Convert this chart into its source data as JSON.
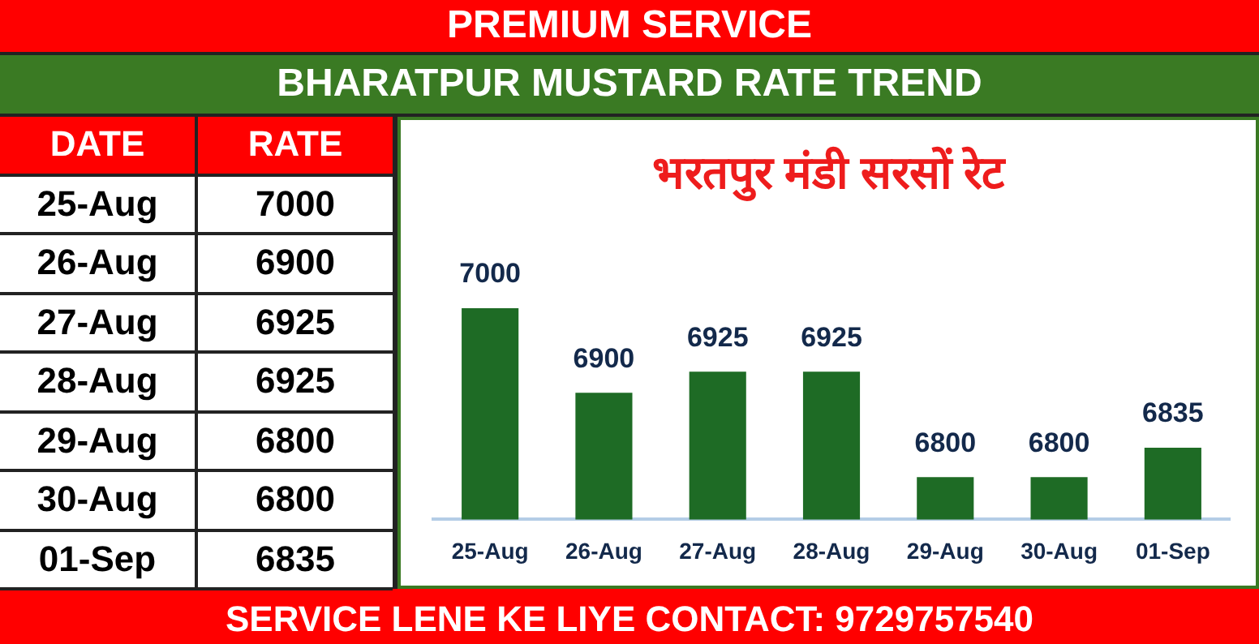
{
  "chart_data": {
    "type": "bar",
    "title": "BHARATPUR MUSTARD RATE TREND",
    "subtitle": "भरतपुर मंडी सरसों रेट",
    "categories": [
      "25-Aug",
      "26-Aug",
      "27-Aug",
      "28-Aug",
      "29-Aug",
      "30-Aug",
      "01-Sep"
    ],
    "values": [
      7000,
      6900,
      6925,
      6925,
      6800,
      6800,
      6835
    ],
    "color": "#1e6b25",
    "value_labels": [
      "7000",
      "6900",
      "6925",
      "6925",
      "6800",
      "6800",
      "6835"
    ],
    "tick_labels": "x",
    "grid": false,
    "legend": false,
    "annotations": [
      "PREMIUM SERVICE",
      "DATE",
      "RATE",
      "SERVICE LENE KE LIYE CONTACT: 9729757540"
    ]
  }
}
